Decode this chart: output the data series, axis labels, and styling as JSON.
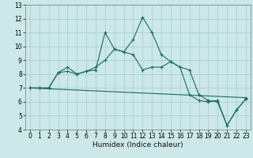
{
  "xlabel": "Humidex (Indice chaleur)",
  "ylabel": "",
  "background_color": "#cce8e8",
  "grid_color": "#aacfcf",
  "line_color": "#1a6b5a",
  "xlim": [
    -0.5,
    23.5
  ],
  "ylim": [
    4,
    13
  ],
  "xticks": [
    0,
    1,
    2,
    3,
    4,
    5,
    6,
    7,
    8,
    9,
    10,
    11,
    12,
    13,
    14,
    15,
    16,
    17,
    18,
    19,
    20,
    21,
    22,
    23
  ],
  "yticks": [
    4,
    5,
    6,
    7,
    8,
    9,
    10,
    11,
    12,
    13
  ],
  "line1_x": [
    0,
    1,
    2,
    3,
    4,
    5,
    6,
    7,
    8,
    9,
    10,
    11,
    12,
    13,
    14,
    15,
    16,
    17,
    18,
    19,
    20,
    21,
    22,
    23
  ],
  "line1_y": [
    7.0,
    7.0,
    7.0,
    8.1,
    8.5,
    8.0,
    8.2,
    8.3,
    11.0,
    9.8,
    9.6,
    10.5,
    12.1,
    11.0,
    9.4,
    8.9,
    8.5,
    8.3,
    6.5,
    6.1,
    6.0,
    4.3,
    5.4,
    6.2
  ],
  "line2_x": [
    0,
    1,
    2,
    3,
    4,
    5,
    6,
    7,
    8,
    9,
    10,
    11,
    12,
    13,
    14,
    15,
    16,
    17,
    18,
    19,
    20,
    21,
    22,
    23
  ],
  "line2_y": [
    7.0,
    7.0,
    7.0,
    8.1,
    8.2,
    8.0,
    8.2,
    8.5,
    9.0,
    9.8,
    9.6,
    9.4,
    8.3,
    8.5,
    8.5,
    8.9,
    8.5,
    6.5,
    6.1,
    6.0,
    6.1,
    4.3,
    5.4,
    6.2
  ],
  "line3_x": [
    0,
    23
  ],
  "line3_y": [
    7.0,
    6.3
  ],
  "tick_fontsize": 5.5,
  "xlabel_fontsize": 6.5,
  "linewidth": 0.8,
  "markersize": 2.5
}
